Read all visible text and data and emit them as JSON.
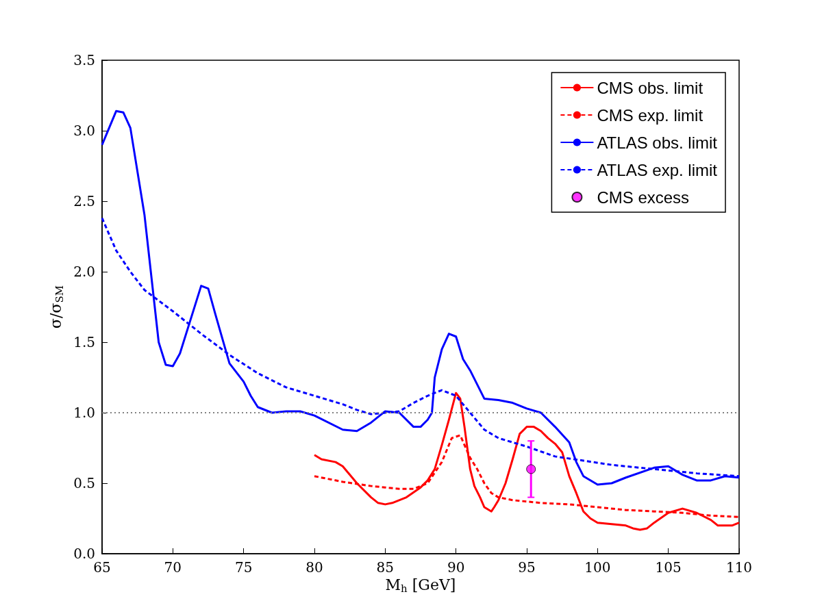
{
  "chart_data": {
    "type": "line",
    "xlabel": "M$_{h}$ [GeV]",
    "ylabel": "σ/σ$_{SM}$",
    "xlim": [
      65,
      110
    ],
    "xticks": [
      65,
      70,
      75,
      80,
      85,
      90,
      95,
      100,
      105,
      110
    ],
    "ylim": [
      0,
      3.5
    ],
    "yticks": [
      {
        "value": 0,
        "label": "0.0"
      },
      0.5,
      {
        "value": 1,
        "label": "1.0"
      },
      1.5,
      {
        "value": 2,
        "label": "2.0"
      },
      2.5,
      {
        "value": 3,
        "label": "3.0"
      },
      3.5
    ],
    "grid": false,
    "legend": "top right",
    "marker": "none",
    "ref_lines": [
      {
        "axis": "y",
        "value": 1,
        "color": "#808080",
        "line_style": "dotted"
      }
    ],
    "series": [
      {
        "name": "CMS obs. limit",
        "color": "#ff0000",
        "line_style": "solid",
        "x": [
          80,
          80.5,
          81.5,
          82,
          83,
          84,
          84.5,
          85,
          85.5,
          86.5,
          87.5,
          88,
          88.5,
          89,
          89.5,
          90,
          90.3,
          90.6,
          91,
          91.3,
          91.7,
          92,
          92.5,
          92.7,
          93,
          93.5,
          94,
          94.5,
          95,
          95.5,
          96,
          96.5,
          97,
          97.5,
          98,
          98.5,
          99,
          99.5,
          100,
          101,
          102,
          102.5,
          103,
          103.5,
          104,
          105,
          106,
          107,
          108,
          108.5,
          109.5,
          110
        ],
        "values": [
          0.7,
          0.67,
          0.65,
          0.62,
          0.5,
          0.4,
          0.36,
          0.35,
          0.36,
          0.4,
          0.47,
          0.52,
          0.6,
          0.77,
          0.95,
          1.14,
          1.1,
          0.9,
          0.6,
          0.48,
          0.4,
          0.33,
          0.3,
          0.33,
          0.38,
          0.5,
          0.67,
          0.85,
          0.9,
          0.9,
          0.87,
          0.82,
          0.78,
          0.72,
          0.55,
          0.43,
          0.3,
          0.25,
          0.22,
          0.21,
          0.2,
          0.18,
          0.17,
          0.18,
          0.22,
          0.29,
          0.32,
          0.29,
          0.24,
          0.2,
          0.2,
          0.22
        ]
      },
      {
        "name": "CMS exp. limit",
        "color": "#ff0000",
        "line_style": "dashed",
        "x": [
          80,
          82,
          84,
          85,
          86,
          87,
          88,
          89,
          89.7,
          90.3,
          91,
          91.5,
          92,
          92.5,
          93,
          94,
          96,
          98,
          100,
          102,
          104,
          106,
          108,
          110
        ],
        "values": [
          0.55,
          0.51,
          0.48,
          0.47,
          0.46,
          0.46,
          0.5,
          0.65,
          0.82,
          0.84,
          0.68,
          0.6,
          0.5,
          0.43,
          0.4,
          0.38,
          0.36,
          0.35,
          0.33,
          0.31,
          0.3,
          0.29,
          0.27,
          0.26
        ]
      },
      {
        "name": "ATLAS obs. limit",
        "color": "#0000ff",
        "line_style": "solid",
        "x": [
          65,
          66,
          66.5,
          67,
          68,
          69,
          69.5,
          70,
          70.5,
          72,
          72.5,
          73,
          74,
          75,
          75.5,
          76,
          77,
          78,
          79,
          80,
          82,
          83,
          84,
          85,
          86,
          87,
          87.5,
          88,
          88.3,
          88.5,
          89,
          89.5,
          90,
          90.5,
          91,
          92,
          93,
          94,
          95,
          96,
          97,
          98,
          98.5,
          99,
          100,
          101,
          102,
          104,
          105,
          106,
          107,
          108,
          109,
          110
        ],
        "values": [
          2.9,
          3.14,
          3.13,
          3.02,
          2.4,
          1.5,
          1.34,
          1.33,
          1.42,
          1.9,
          1.88,
          1.7,
          1.35,
          1.22,
          1.12,
          1.04,
          1,
          1.01,
          1.01,
          0.98,
          0.88,
          0.87,
          0.93,
          1.01,
          1,
          0.9,
          0.9,
          0.95,
          1,
          1.25,
          1.45,
          1.56,
          1.54,
          1.38,
          1.3,
          1.1,
          1.09,
          1.07,
          1.03,
          1,
          0.9,
          0.79,
          0.65,
          0.55,
          0.49,
          0.5,
          0.54,
          0.61,
          0.62,
          0.56,
          0.52,
          0.52,
          0.55,
          0.54
        ]
      },
      {
        "name": "ATLAS exp. limit",
        "color": "#0000ff",
        "line_style": "dashed",
        "x": [
          65,
          66,
          67,
          68,
          70,
          72,
          74,
          76,
          78,
          80,
          82,
          83,
          84,
          85,
          86,
          87,
          88,
          89,
          90,
          91,
          92,
          93,
          95,
          97,
          99,
          101,
          103,
          105,
          107,
          110
        ],
        "values": [
          2.38,
          2.15,
          2,
          1.87,
          1.72,
          1.56,
          1.41,
          1.28,
          1.18,
          1.12,
          1.06,
          1.02,
          0.99,
          1,
          1.01,
          1.07,
          1.12,
          1.16,
          1.12,
          1,
          0.88,
          0.82,
          0.76,
          0.69,
          0.66,
          0.63,
          0.61,
          0.59,
          0.57,
          0.55
        ]
      },
      {
        "name": "CMS excess",
        "type": "scatter",
        "marker": "circle",
        "color": "#ff00ff",
        "x": [
          95.3
        ],
        "values": [
          0.6
        ],
        "errors": [
          0.2
        ]
      }
    ]
  }
}
